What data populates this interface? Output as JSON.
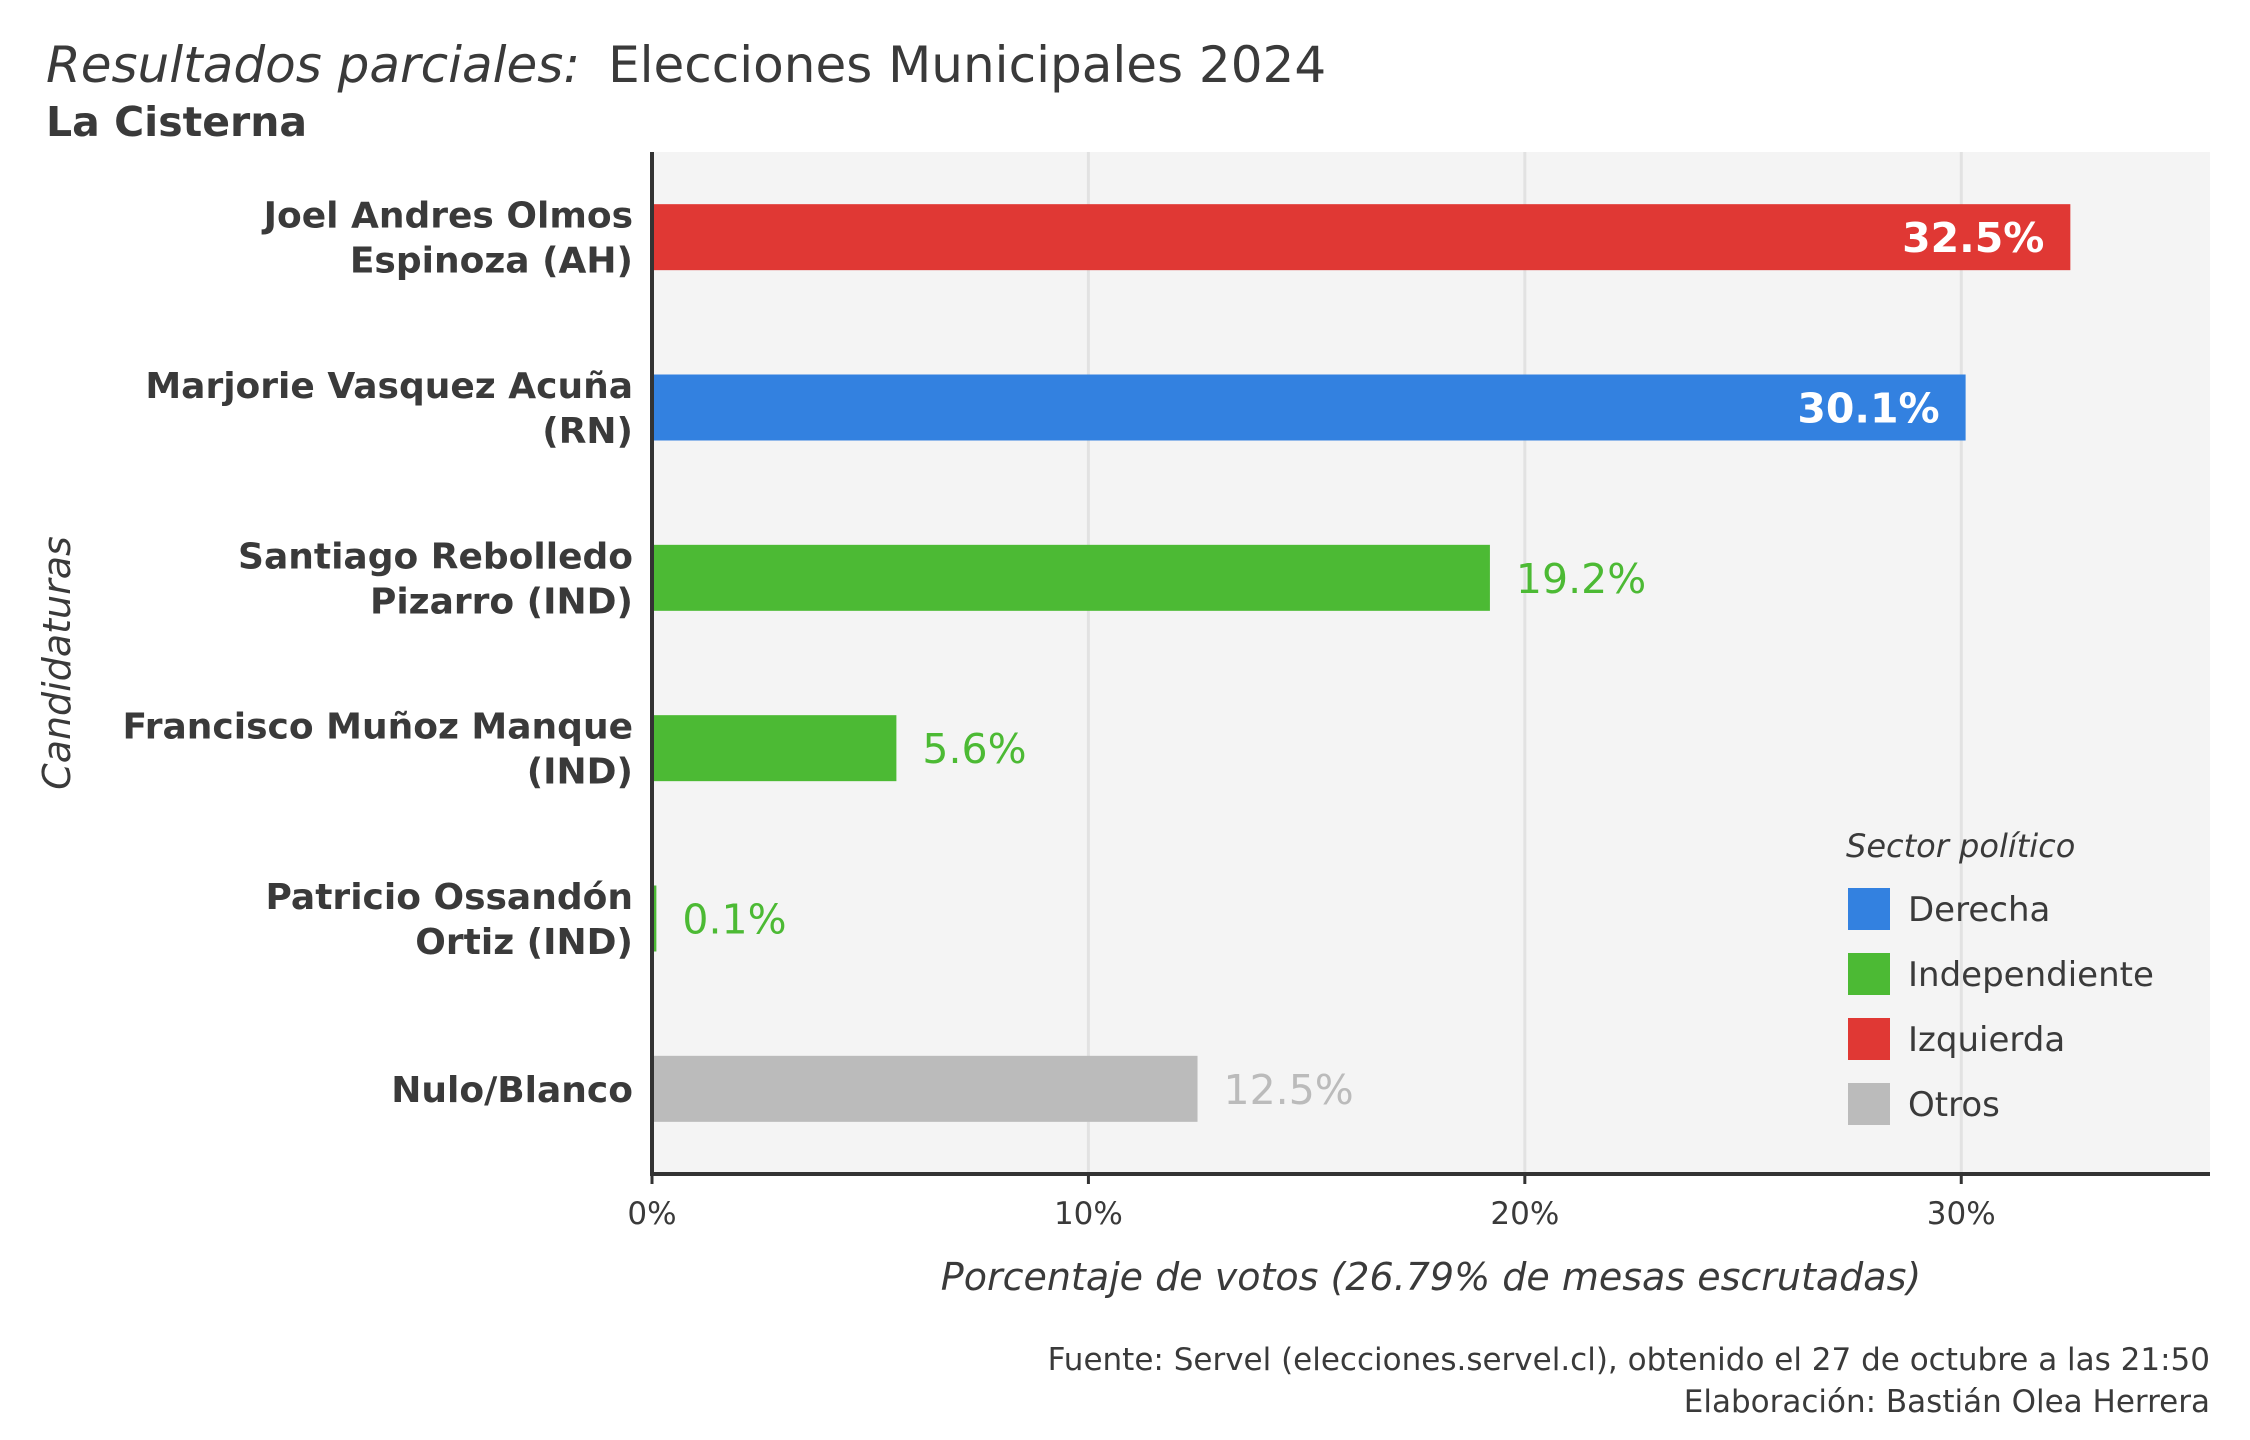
{
  "chart_data": {
    "type": "bar",
    "orientation": "horizontal",
    "title_italic": "Resultados parciales:",
    "title_main": "Elecciones Municipales 2024",
    "subtitle": "La Cisterna",
    "xlabel": "Porcentaje de votos (26.79% de mesas escrutadas)",
    "ylabel": "Candidaturas",
    "xlim": [
      0,
      35.7
    ],
    "xticks": [
      {
        "value": 0,
        "label": "0%"
      },
      {
        "value": 10,
        "label": "10%"
      },
      {
        "value": 20,
        "label": "20%"
      },
      {
        "value": 30,
        "label": "30%"
      }
    ],
    "grid": "vertical",
    "bars": [
      {
        "label_lines": [
          "Joel Andres Olmos",
          "Espinoza (AH)"
        ],
        "value": 32.5,
        "value_label": "32.5%",
        "sector": "Izquierda",
        "label_inside": true
      },
      {
        "label_lines": [
          "Marjorie Vasquez Acuña",
          "(RN)"
        ],
        "value": 30.1,
        "value_label": "30.1%",
        "sector": "Derecha",
        "label_inside": true
      },
      {
        "label_lines": [
          "Santiago Rebolledo",
          "Pizarro (IND)"
        ],
        "value": 19.2,
        "value_label": "19.2%",
        "sector": "Independiente",
        "label_inside": false
      },
      {
        "label_lines": [
          "Francisco Muñoz Manque",
          "(IND)"
        ],
        "value": 5.6,
        "value_label": "5.6%",
        "sector": "Independiente",
        "label_inside": false
      },
      {
        "label_lines": [
          "Patricio Ossandón",
          "Ortiz (IND)"
        ],
        "value": 0.1,
        "value_label": "0.1%",
        "sector": "Independiente",
        "label_inside": false
      },
      {
        "label_lines": [
          "Nulo/Blanco"
        ],
        "value": 12.5,
        "value_label": "12.5%",
        "sector": "Otros",
        "label_inside": false
      }
    ],
    "legend": {
      "title": "Sector político",
      "placement": "bottom-right",
      "items": [
        {
          "name": "Derecha",
          "color": "#3381E0"
        },
        {
          "name": "Independiente",
          "color": "#4CBA34"
        },
        {
          "name": "Izquierda",
          "color": "#E03834"
        },
        {
          "name": "Otros",
          "color": "#BBBBBB"
        }
      ]
    },
    "source_lines": [
      "Fuente: Servel (elecciones.servel.cl), obtenido el 27 de octubre a las 21:50",
      "Elaboración: Bastián Olea Herrera"
    ]
  },
  "colors": {
    "Derecha": "#3381E0",
    "Independiente": "#4CBA34",
    "Izquierda": "#E03834",
    "Otros": "#BBBBBB",
    "panel_bg": "#F4F4F4",
    "grid": "#E2E2E2",
    "axis": "#333333",
    "text": "#3A3A3A"
  }
}
